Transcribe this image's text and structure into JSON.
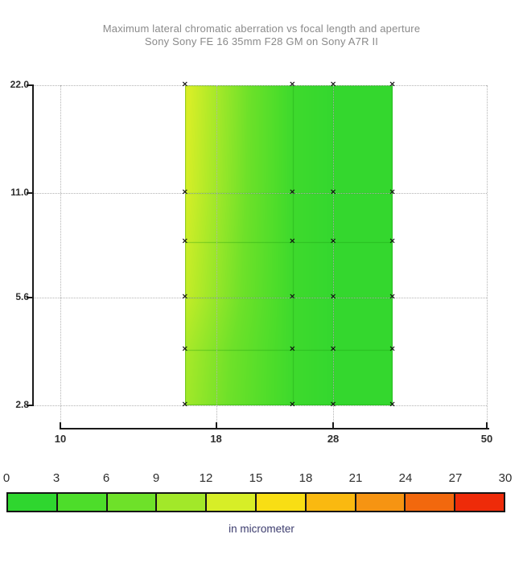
{
  "chart_data": {
    "type": "heatmap",
    "title": "Maximum lateral chromatic aberration vs focal length and aperture",
    "subtitle": "Sony Sony FE 16 35mm F28 GM on Sony A7R II",
    "x_scale": "log",
    "y_scale": "log",
    "x_range": [
      10,
      50
    ],
    "y_range": [
      2.8,
      22
    ],
    "x_axis_ticks": [
      "10",
      "18",
      "28",
      "50"
    ],
    "y_axis_ticks": [
      "22.0",
      "11.0",
      "5.6",
      "2.8"
    ],
    "grid": "dotted",
    "focal_lengths_mm": [
      16,
      24,
      28,
      35
    ],
    "apertures": [
      22,
      11,
      8,
      5.6,
      4,
      2.8
    ],
    "values_micrometer": [
      [
        14.0,
        3,
        2,
        2
      ],
      [
        13.5,
        3,
        2,
        2
      ],
      [
        13.0,
        3,
        2,
        2
      ],
      [
        12.5,
        3,
        2,
        2
      ],
      [
        11.0,
        3,
        2,
        2
      ],
      [
        10.5,
        3,
        2,
        2
      ]
    ],
    "marker_glyph": "×",
    "colorbar": {
      "min": 0,
      "max": 30,
      "ticks": [
        "0",
        "3",
        "6",
        "9",
        "12",
        "15",
        "18",
        "21",
        "24",
        "27",
        "30"
      ],
      "colors": [
        "#2fd62f",
        "#4ddd2a",
        "#6ee129",
        "#a2e829",
        "#d7ee27",
        "#f8de14",
        "#fab910",
        "#f69412",
        "#f2680d",
        "#ee2b09"
      ],
      "unit_label": "in micrometer"
    }
  },
  "colors": {
    "title_text": "#8a8a8a",
    "axis": "#1a1a1a",
    "grid_dots": "#b3b3b3",
    "tick_text": "#2e2e2e",
    "caption_text": "#3c3c6e"
  }
}
